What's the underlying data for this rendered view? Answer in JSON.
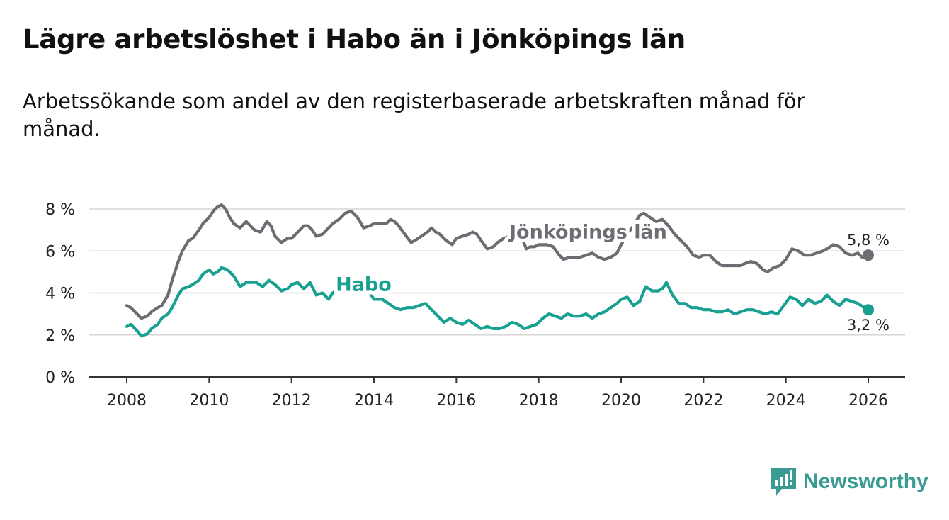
{
  "title": "Lägre arbetslöshet i Habo än i Jönköpings län",
  "subtitle": "Arbetssökande som andel av den registerbaserade arbetskraften månad för månad.",
  "brand": "Newsworthy",
  "colors": {
    "jonkoping": "#6d6c72",
    "habo": "#18a091",
    "grid": "#d6d6d6",
    "brand": "#3a9a94"
  },
  "chart_data": {
    "type": "line",
    "title": "Lägre arbetslöshet i Habo än i Jönköpings län",
    "xlabel": "",
    "ylabel": "",
    "xlim": [
      2007.5,
      2027.0
    ],
    "ylim": [
      0,
      8
    ],
    "grid": true,
    "x_ticks": [
      2008,
      2010,
      2012,
      2014,
      2016,
      2018,
      2020,
      2022,
      2024,
      2026
    ],
    "x_tick_labels": [
      "2008",
      "2010",
      "2012",
      "2014",
      "2016",
      "2018",
      "2020",
      "2022",
      "2024",
      "2026"
    ],
    "y_ticks": [
      0,
      2,
      4,
      6,
      8
    ],
    "y_tick_labels": [
      "0 %",
      "2 %",
      "4 %",
      "6 %",
      "8 %"
    ],
    "series": [
      {
        "name": "Jönköpings län",
        "color": "#6d6c72",
        "end_label": "5,8 %",
        "points": [
          [
            2008.0,
            3.4
          ],
          [
            2008.1,
            3.3
          ],
          [
            2008.25,
            3.0
          ],
          [
            2008.35,
            2.8
          ],
          [
            2008.5,
            2.9
          ],
          [
            2008.6,
            3.1
          ],
          [
            2008.75,
            3.3
          ],
          [
            2008.85,
            3.4
          ],
          [
            2009.0,
            3.9
          ],
          [
            2009.1,
            4.6
          ],
          [
            2009.25,
            5.5
          ],
          [
            2009.35,
            6.0
          ],
          [
            2009.5,
            6.5
          ],
          [
            2009.6,
            6.6
          ],
          [
            2009.75,
            7.0
          ],
          [
            2009.85,
            7.3
          ],
          [
            2010.0,
            7.6
          ],
          [
            2010.1,
            7.9
          ],
          [
            2010.2,
            8.1
          ],
          [
            2010.3,
            8.2
          ],
          [
            2010.4,
            8.0
          ],
          [
            2010.5,
            7.6
          ],
          [
            2010.6,
            7.3
          ],
          [
            2010.75,
            7.1
          ],
          [
            2010.9,
            7.4
          ],
          [
            2011.0,
            7.2
          ],
          [
            2011.1,
            7.0
          ],
          [
            2011.25,
            6.9
          ],
          [
            2011.4,
            7.4
          ],
          [
            2011.5,
            7.2
          ],
          [
            2011.6,
            6.7
          ],
          [
            2011.75,
            6.4
          ],
          [
            2011.9,
            6.6
          ],
          [
            2012.0,
            6.6
          ],
          [
            2012.15,
            6.9
          ],
          [
            2012.3,
            7.2
          ],
          [
            2012.4,
            7.2
          ],
          [
            2012.5,
            7.0
          ],
          [
            2012.6,
            6.7
          ],
          [
            2012.75,
            6.8
          ],
          [
            2012.9,
            7.1
          ],
          [
            2013.0,
            7.3
          ],
          [
            2013.15,
            7.5
          ],
          [
            2013.3,
            7.8
          ],
          [
            2013.45,
            7.9
          ],
          [
            2013.6,
            7.6
          ],
          [
            2013.75,
            7.1
          ],
          [
            2013.9,
            7.2
          ],
          [
            2014.0,
            7.3
          ],
          [
            2014.15,
            7.3
          ],
          [
            2014.3,
            7.3
          ],
          [
            2014.4,
            7.5
          ],
          [
            2014.5,
            7.4
          ],
          [
            2014.6,
            7.2
          ],
          [
            2014.75,
            6.8
          ],
          [
            2014.9,
            6.4
          ],
          [
            2015.0,
            6.5
          ],
          [
            2015.15,
            6.7
          ],
          [
            2015.3,
            6.9
          ],
          [
            2015.4,
            7.1
          ],
          [
            2015.5,
            6.9
          ],
          [
            2015.6,
            6.8
          ],
          [
            2015.75,
            6.5
          ],
          [
            2015.9,
            6.3
          ],
          [
            2016.0,
            6.6
          ],
          [
            2016.15,
            6.7
          ],
          [
            2016.3,
            6.8
          ],
          [
            2016.4,
            6.9
          ],
          [
            2016.5,
            6.8
          ],
          [
            2016.6,
            6.5
          ],
          [
            2016.75,
            6.1
          ],
          [
            2016.9,
            6.2
          ],
          [
            2017.0,
            6.4
          ],
          [
            2017.15,
            6.6
          ],
          [
            2017.3,
            6.7
          ],
          [
            2017.45,
            6.8
          ],
          [
            2017.6,
            6.6
          ],
          [
            2017.7,
            6.1
          ],
          [
            2017.8,
            6.2
          ],
          [
            2017.9,
            6.2
          ],
          [
            2018.0,
            6.3
          ],
          [
            2018.2,
            6.3
          ],
          [
            2018.35,
            6.2
          ],
          [
            2018.5,
            5.8
          ],
          [
            2018.6,
            5.6
          ],
          [
            2018.75,
            5.7
          ],
          [
            2018.9,
            5.7
          ],
          [
            2019.0,
            5.7
          ],
          [
            2019.15,
            5.8
          ],
          [
            2019.3,
            5.9
          ],
          [
            2019.45,
            5.7
          ],
          [
            2019.6,
            5.6
          ],
          [
            2019.75,
            5.7
          ],
          [
            2019.9,
            5.9
          ],
          [
            2020.0,
            6.3
          ],
          [
            2020.15,
            6.8
          ],
          [
            2020.3,
            7.2
          ],
          [
            2020.45,
            7.7
          ],
          [
            2020.55,
            7.8
          ],
          [
            2020.7,
            7.6
          ],
          [
            2020.85,
            7.4
          ],
          [
            2021.0,
            7.5
          ],
          [
            2021.15,
            7.2
          ],
          [
            2021.3,
            6.8
          ],
          [
            2021.45,
            6.5
          ],
          [
            2021.6,
            6.2
          ],
          [
            2021.75,
            5.8
          ],
          [
            2021.9,
            5.7
          ],
          [
            2022.0,
            5.8
          ],
          [
            2022.15,
            5.8
          ],
          [
            2022.3,
            5.5
          ],
          [
            2022.45,
            5.3
          ],
          [
            2022.6,
            5.3
          ],
          [
            2022.75,
            5.3
          ],
          [
            2022.9,
            5.3
          ],
          [
            2023.0,
            5.4
          ],
          [
            2023.15,
            5.5
          ],
          [
            2023.3,
            5.4
          ],
          [
            2023.45,
            5.1
          ],
          [
            2023.55,
            5.0
          ],
          [
            2023.7,
            5.2
          ],
          [
            2023.85,
            5.3
          ],
          [
            2024.0,
            5.6
          ],
          [
            2024.15,
            6.1
          ],
          [
            2024.3,
            6.0
          ],
          [
            2024.45,
            5.8
          ],
          [
            2024.6,
            5.8
          ],
          [
            2024.75,
            5.9
          ],
          [
            2024.9,
            6.0
          ],
          [
            2025.0,
            6.1
          ],
          [
            2025.15,
            6.3
          ],
          [
            2025.3,
            6.2
          ],
          [
            2025.45,
            5.9
          ],
          [
            2025.6,
            5.8
          ],
          [
            2025.75,
            5.9
          ],
          [
            2025.85,
            5.7
          ],
          [
            2026.0,
            5.8
          ]
        ]
      },
      {
        "name": "Habo",
        "color": "#18a091",
        "end_label": "3,2 %",
        "points": [
          [
            2008.0,
            2.4
          ],
          [
            2008.1,
            2.5
          ],
          [
            2008.25,
            2.2
          ],
          [
            2008.35,
            1.95
          ],
          [
            2008.5,
            2.05
          ],
          [
            2008.6,
            2.3
          ],
          [
            2008.75,
            2.5
          ],
          [
            2008.85,
            2.8
          ],
          [
            2009.0,
            3.0
          ],
          [
            2009.1,
            3.3
          ],
          [
            2009.25,
            3.9
          ],
          [
            2009.35,
            4.2
          ],
          [
            2009.5,
            4.3
          ],
          [
            2009.6,
            4.4
          ],
          [
            2009.75,
            4.6
          ],
          [
            2009.85,
            4.9
          ],
          [
            2010.0,
            5.1
          ],
          [
            2010.1,
            4.9
          ],
          [
            2010.2,
            5.0
          ],
          [
            2010.3,
            5.2
          ],
          [
            2010.45,
            5.1
          ],
          [
            2010.6,
            4.8
          ],
          [
            2010.75,
            4.3
          ],
          [
            2010.9,
            4.5
          ],
          [
            2011.0,
            4.5
          ],
          [
            2011.15,
            4.5
          ],
          [
            2011.3,
            4.3
          ],
          [
            2011.45,
            4.6
          ],
          [
            2011.6,
            4.4
          ],
          [
            2011.75,
            4.1
          ],
          [
            2011.9,
            4.2
          ],
          [
            2012.0,
            4.4
          ],
          [
            2012.15,
            4.5
          ],
          [
            2012.3,
            4.2
          ],
          [
            2012.45,
            4.5
          ],
          [
            2012.6,
            3.9
          ],
          [
            2012.75,
            4.0
          ],
          [
            2012.9,
            3.7
          ],
          [
            2013.0,
            4.0
          ],
          [
            2013.15,
            4.2
          ],
          [
            2013.3,
            4.3
          ],
          [
            2013.45,
            4.1
          ],
          [
            2013.6,
            4.4
          ],
          [
            2013.75,
            4.3
          ],
          [
            2013.9,
            4.0
          ],
          [
            2014.0,
            3.7
          ],
          [
            2014.2,
            3.7
          ],
          [
            2014.35,
            3.5
          ],
          [
            2014.5,
            3.3
          ],
          [
            2014.65,
            3.2
          ],
          [
            2014.8,
            3.3
          ],
          [
            2014.95,
            3.3
          ],
          [
            2015.1,
            3.4
          ],
          [
            2015.25,
            3.5
          ],
          [
            2015.4,
            3.2
          ],
          [
            2015.55,
            2.9
          ],
          [
            2015.7,
            2.6
          ],
          [
            2015.85,
            2.8
          ],
          [
            2016.0,
            2.6
          ],
          [
            2016.15,
            2.5
          ],
          [
            2016.3,
            2.7
          ],
          [
            2016.45,
            2.5
          ],
          [
            2016.6,
            2.3
          ],
          [
            2016.75,
            2.4
          ],
          [
            2016.9,
            2.3
          ],
          [
            2017.05,
            2.3
          ],
          [
            2017.2,
            2.4
          ],
          [
            2017.35,
            2.6
          ],
          [
            2017.5,
            2.5
          ],
          [
            2017.65,
            2.3
          ],
          [
            2017.8,
            2.4
          ],
          [
            2017.95,
            2.5
          ],
          [
            2018.1,
            2.8
          ],
          [
            2018.25,
            3.0
          ],
          [
            2018.4,
            2.9
          ],
          [
            2018.55,
            2.8
          ],
          [
            2018.7,
            3.0
          ],
          [
            2018.85,
            2.9
          ],
          [
            2019.0,
            2.9
          ],
          [
            2019.15,
            3.0
          ],
          [
            2019.3,
            2.8
          ],
          [
            2019.45,
            3.0
          ],
          [
            2019.6,
            3.1
          ],
          [
            2019.75,
            3.3
          ],
          [
            2019.9,
            3.5
          ],
          [
            2020.0,
            3.7
          ],
          [
            2020.15,
            3.8
          ],
          [
            2020.3,
            3.4
          ],
          [
            2020.45,
            3.6
          ],
          [
            2020.6,
            4.3
          ],
          [
            2020.75,
            4.1
          ],
          [
            2020.9,
            4.1
          ],
          [
            2021.0,
            4.2
          ],
          [
            2021.1,
            4.5
          ],
          [
            2021.25,
            3.9
          ],
          [
            2021.4,
            3.5
          ],
          [
            2021.55,
            3.5
          ],
          [
            2021.7,
            3.3
          ],
          [
            2021.85,
            3.3
          ],
          [
            2022.0,
            3.2
          ],
          [
            2022.15,
            3.2
          ],
          [
            2022.3,
            3.1
          ],
          [
            2022.45,
            3.1
          ],
          [
            2022.6,
            3.2
          ],
          [
            2022.75,
            3.0
          ],
          [
            2022.9,
            3.1
          ],
          [
            2023.05,
            3.2
          ],
          [
            2023.2,
            3.2
          ],
          [
            2023.35,
            3.1
          ],
          [
            2023.5,
            3.0
          ],
          [
            2023.65,
            3.1
          ],
          [
            2023.8,
            3.0
          ],
          [
            2023.95,
            3.4
          ],
          [
            2024.1,
            3.8
          ],
          [
            2024.25,
            3.7
          ],
          [
            2024.4,
            3.4
          ],
          [
            2024.55,
            3.7
          ],
          [
            2024.7,
            3.5
          ],
          [
            2024.85,
            3.6
          ],
          [
            2025.0,
            3.9
          ],
          [
            2025.15,
            3.6
          ],
          [
            2025.3,
            3.4
          ],
          [
            2025.45,
            3.7
          ],
          [
            2025.6,
            3.6
          ],
          [
            2025.75,
            3.5
          ],
          [
            2025.9,
            3.3
          ],
          [
            2026.0,
            3.2
          ]
        ]
      }
    ],
    "series_labels": [
      {
        "text": "Jönköpings län",
        "series": "Jönköpings län",
        "x": 2019.2,
        "y": 6.6
      },
      {
        "text": "Habo",
        "series": "Habo",
        "x": 2013.75,
        "y": 4.1
      }
    ]
  }
}
